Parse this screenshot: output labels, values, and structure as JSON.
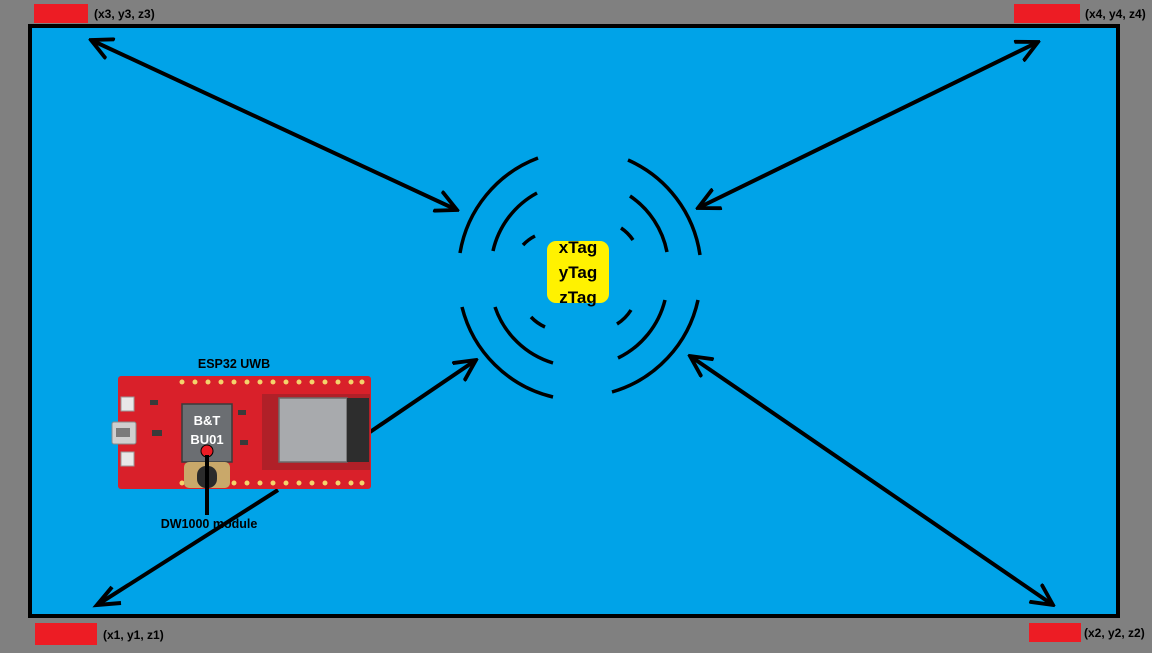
{
  "anchors": {
    "top_left": {
      "label": "(x3, y3, z3)"
    },
    "top_right": {
      "label": "(x4, y4, z4)"
    },
    "bottom_left": {
      "label": "(x1, y1, z1)"
    },
    "bottom_right": {
      "label": "(x2, y2, z2)"
    }
  },
  "tag": {
    "line1": "xTag",
    "line2": "yTag",
    "line3": "zTag"
  },
  "board": {
    "title": "ESP32 UWB",
    "module_label": "DW1000 module",
    "chip_marking_1": "B&T",
    "chip_marking_2": "BU01"
  },
  "colors": {
    "background": "#808080",
    "room": "#00a3e8",
    "anchor": "#ed1c24",
    "tag": "#fff200",
    "board": "#d9202a",
    "arrow": "#000000"
  }
}
